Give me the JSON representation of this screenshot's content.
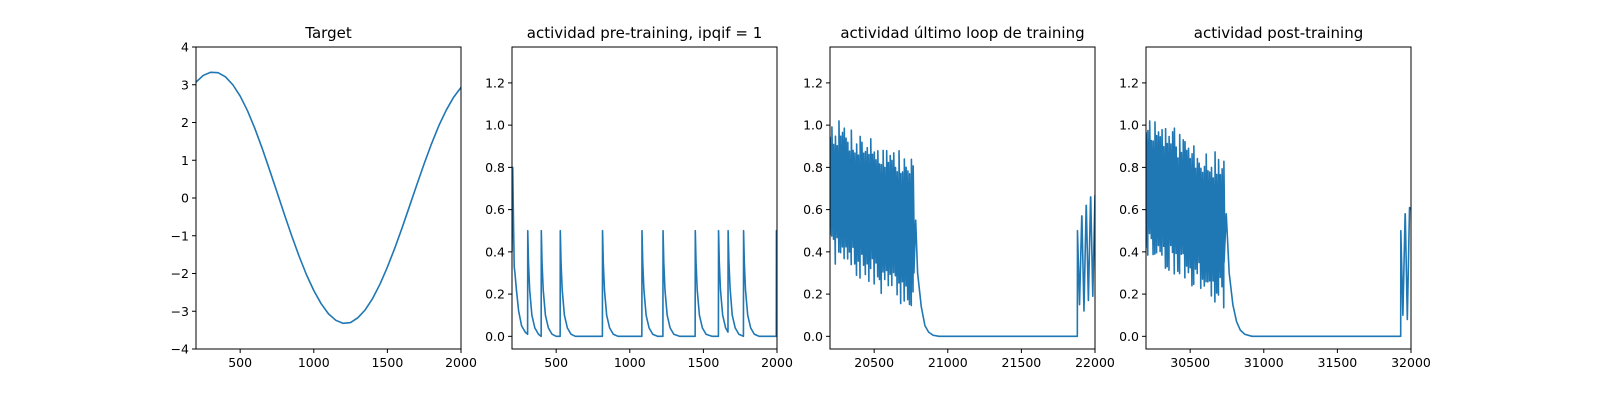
{
  "colors": {
    "line": "#1f77b4",
    "axes": "#000000",
    "background": "#ffffff"
  },
  "chart_data": [
    {
      "type": "line",
      "title": "Target",
      "xlabel": "",
      "ylabel": "",
      "xlim": [
        200,
        2000
      ],
      "ylim": [
        -4,
        4
      ],
      "xticks": [
        500,
        1000,
        1500,
        2000
      ],
      "yticks": [
        -4,
        -3,
        -2,
        -1,
        0,
        1,
        2,
        3,
        4
      ],
      "x": [
        200,
        250,
        300,
        350,
        400,
        450,
        500,
        550,
        600,
        650,
        700,
        750,
        800,
        850,
        900,
        950,
        1000,
        1050,
        1100,
        1150,
        1200,
        1250,
        1300,
        1350,
        1400,
        1450,
        1500,
        1550,
        1600,
        1650,
        1700,
        1750,
        1800,
        1850,
        1900,
        1950,
        2000
      ],
      "y": [
        3.07,
        3.25,
        3.33,
        3.32,
        3.21,
        3.0,
        2.7,
        2.31,
        1.84,
        1.31,
        0.74,
        0.16,
        -0.43,
        -1.0,
        -1.54,
        -2.03,
        -2.45,
        -2.8,
        -3.07,
        -3.24,
        -3.32,
        -3.3,
        -3.17,
        -2.96,
        -2.66,
        -2.28,
        -1.83,
        -1.33,
        -0.79,
        -0.22,
        0.35,
        0.91,
        1.44,
        1.92,
        2.33,
        2.67,
        2.93
      ]
    },
    {
      "type": "line",
      "title": "actividad pre-training, ipqif = 1",
      "xlabel": "",
      "ylabel": "",
      "xlim": [
        200,
        2000
      ],
      "ylim": [
        -0.06,
        1.37
      ],
      "xticks": [
        500,
        1000,
        1500,
        2000
      ],
      "yticks": [
        0.0,
        0.2,
        0.4,
        0.6,
        0.8,
        1.0,
        1.2
      ],
      "x": [
        200,
        205,
        210,
        215,
        220,
        230,
        245,
        265,
        290,
        306,
        307,
        312,
        320,
        335,
        355,
        380,
        398,
        399,
        404,
        412,
        427,
        447,
        472,
        500,
        527,
        528,
        533,
        541,
        556,
        576,
        601,
        630,
        680,
        760,
        814,
        815,
        820,
        828,
        843,
        863,
        888,
        920,
        980,
        1040,
        1082,
        1083,
        1088,
        1096,
        1111,
        1131,
        1156,
        1190,
        1225,
        1226,
        1231,
        1239,
        1254,
        1274,
        1299,
        1340,
        1400,
        1444,
        1445,
        1450,
        1458,
        1473,
        1493,
        1518,
        1560,
        1602,
        1603,
        1608,
        1616,
        1631,
        1651,
        1667,
        1668,
        1673,
        1681,
        1696,
        1716,
        1741,
        1772,
        1773,
        1778,
        1786,
        1801,
        1821,
        1846,
        1880,
        1930,
        1995,
        1996,
        2000
      ],
      "y": [
        0.4,
        0.8,
        0.55,
        0.33,
        0.3,
        0.22,
        0.12,
        0.05,
        0.02,
        0.01,
        0.5,
        0.35,
        0.22,
        0.1,
        0.04,
        0.01,
        0.0,
        0.5,
        0.35,
        0.22,
        0.1,
        0.04,
        0.01,
        0.0,
        0.0,
        0.5,
        0.35,
        0.22,
        0.1,
        0.04,
        0.01,
        0.0,
        0.0,
        0.0,
        0.0,
        0.5,
        0.35,
        0.22,
        0.1,
        0.04,
        0.01,
        0.0,
        0.0,
        0.0,
        0.0,
        0.5,
        0.35,
        0.22,
        0.1,
        0.04,
        0.01,
        0.0,
        0.0,
        0.5,
        0.35,
        0.22,
        0.1,
        0.04,
        0.01,
        0.0,
        0.0,
        0.0,
        0.5,
        0.35,
        0.22,
        0.1,
        0.04,
        0.01,
        0.0,
        0.0,
        0.5,
        0.35,
        0.22,
        0.1,
        0.04,
        0.02,
        0.5,
        0.36,
        0.23,
        0.1,
        0.04,
        0.01,
        0.0,
        0.5,
        0.35,
        0.22,
        0.1,
        0.04,
        0.01,
        0.0,
        0.0,
        0.0,
        0.5,
        0.4
      ]
    },
    {
      "type": "line",
      "title": "actividad último loop de training",
      "xlabel": "",
      "ylabel": "",
      "xlim": [
        20200,
        22000
      ],
      "ylim": [
        -0.06,
        1.37
      ],
      "xticks": [
        20500,
        21000,
        21500,
        22000
      ],
      "yticks": [
        0.0,
        0.2,
        0.4,
        0.6,
        0.8,
        1.0,
        1.2
      ],
      "burst": {
        "x0": 20200,
        "x1": 20770,
        "period": 12,
        "peak_start": 0.98,
        "peak_end": 0.78,
        "trough_start": 0.42,
        "trough_end": 0.18,
        "seed": 7
      },
      "x": [
        20770,
        20782,
        20795,
        20820,
        20845,
        20870,
        20900,
        20940,
        21000,
        21870,
        21880,
        21881,
        21895,
        21910,
        21911,
        21925,
        21940,
        21941,
        21955,
        21970,
        21971,
        21985,
        22000
      ],
      "y": [
        0.3,
        0.55,
        0.3,
        0.14,
        0.05,
        0.02,
        0.005,
        0.0,
        0.0,
        0.0,
        0.0,
        0.5,
        0.15,
        0.57,
        0.57,
        0.12,
        0.62,
        0.62,
        0.17,
        0.66,
        0.66,
        0.19,
        0.67
      ]
    },
    {
      "type": "line",
      "title": "actividad post-training",
      "xlabel": "",
      "ylabel": "",
      "xlim": [
        30200,
        32000
      ],
      "ylim": [
        -0.06,
        1.37
      ],
      "xticks": [
        30500,
        31000,
        31500,
        32000
      ],
      "yticks": [
        0.0,
        0.2,
        0.4,
        0.6,
        0.8,
        1.0,
        1.2
      ],
      "burst": {
        "x0": 30200,
        "x1": 30730,
        "period": 12,
        "peak_start": 1.0,
        "peak_end": 0.78,
        "trough_start": 0.45,
        "trough_end": 0.2,
        "seed": 11
      },
      "x": [
        30730,
        30745,
        30765,
        30790,
        30815,
        30840,
        30870,
        30920,
        31000,
        31920,
        31930,
        31931,
        31945,
        31960,
        31961,
        31975,
        31990,
        32000
      ],
      "y": [
        0.35,
        0.58,
        0.3,
        0.15,
        0.07,
        0.03,
        0.01,
        0.0,
        0.0,
        0.0,
        0.0,
        0.5,
        0.1,
        0.58,
        0.58,
        0.08,
        0.61,
        0.6
      ]
    }
  ]
}
